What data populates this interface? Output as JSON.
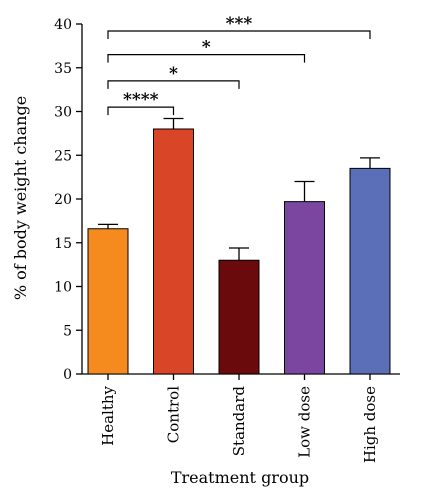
{
  "chart_data": {
    "type": "bar",
    "xlabel": "Treatment group",
    "ylabel": "% of body weight change",
    "ylim": [
      0,
      40
    ],
    "yticks": [
      0,
      5,
      10,
      15,
      20,
      25,
      30,
      35,
      40
    ],
    "categories": [
      "Healthy",
      "Control",
      "Standard",
      "Low dose",
      "High dose"
    ],
    "values": [
      16.6,
      28.0,
      13.0,
      19.7,
      23.5
    ],
    "errors": [
      0.5,
      1.2,
      1.4,
      2.3,
      1.2
    ],
    "colors": [
      "#f58a1f",
      "#d94527",
      "#6b0a0c",
      "#7b46a0",
      "#5a6fb8"
    ],
    "significance": [
      {
        "from": "Healthy",
        "to": "Control",
        "label": "****",
        "y": 30.5
      },
      {
        "from": "Healthy",
        "to": "Standard",
        "label": "*",
        "y": 33.5
      },
      {
        "from": "Healthy",
        "to": "Low dose",
        "label": "*",
        "y": 36.5
      },
      {
        "from": "Healthy",
        "to": "High dose",
        "label": "***",
        "y": 39.2
      }
    ],
    "grid": false
  }
}
